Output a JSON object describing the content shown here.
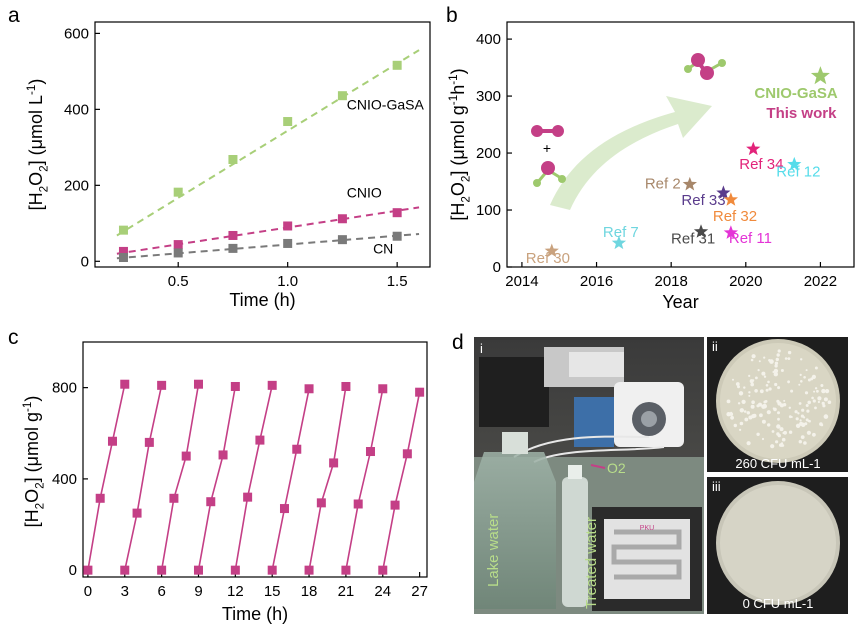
{
  "panel_labels": {
    "a": "a",
    "b": "b",
    "c": "c",
    "d": "d"
  },
  "chart_data": [
    {
      "id": "a",
      "type": "scatter",
      "xlabel": "Time (h)",
      "ylabel": "[H2O2] (μmol L-1)",
      "xlim": [
        0.12,
        1.65
      ],
      "ylim": [
        -15,
        630
      ],
      "xticks": [
        0.5,
        1.0,
        1.5
      ],
      "xtick_labels": [
        "0.5",
        "1.0",
        "1.5"
      ],
      "yticks": [
        0,
        200,
        400,
        600
      ],
      "ytick_labels": [
        "0",
        "200",
        "400",
        "600"
      ],
      "series": [
        {
          "name": "CNIO-GaSA",
          "color": "#a8cf78",
          "marker": "square",
          "x": [
            0.25,
            0.5,
            0.75,
            1.0,
            1.25,
            1.5
          ],
          "y": [
            82,
            182,
            268,
            368,
            436,
            516
          ],
          "fit": [
            [
              0.22,
              68
            ],
            [
              1.6,
              556
            ]
          ]
        },
        {
          "name": "CNIO",
          "color": "#c43f86",
          "marker": "square",
          "x": [
            0.25,
            0.5,
            0.75,
            1.0,
            1.25,
            1.5
          ],
          "y": [
            26,
            44,
            68,
            93,
            112,
            128
          ],
          "fit": [
            [
              0.22,
              20
            ],
            [
              1.6,
              142
            ]
          ]
        },
        {
          "name": "CN",
          "color": "#7a7a7a",
          "marker": "square",
          "x": [
            0.25,
            0.5,
            0.75,
            1.0,
            1.25,
            1.5
          ],
          "y": [
            10,
            22,
            34,
            47,
            57,
            66
          ],
          "fit": [
            [
              0.22,
              8
            ],
            [
              1.6,
              72
            ]
          ]
        }
      ]
    },
    {
      "id": "b",
      "type": "scatter",
      "xlabel": "Year",
      "ylabel": "[H2O2] (μmol g-1h-1)",
      "xlim": [
        2013.6,
        2022.9
      ],
      "ylim": [
        0,
        430
      ],
      "xticks": [
        2014,
        2016,
        2018,
        2020,
        2022
      ],
      "xtick_labels": [
        "2014",
        "2016",
        "2018",
        "2020",
        "2022"
      ],
      "yticks": [
        0,
        100,
        200,
        300,
        400
      ],
      "ytick_labels": [
        "0",
        "100",
        "200",
        "300",
        "400"
      ],
      "points": [
        {
          "label": "Ref 30",
          "x": 2014.8,
          "y": 28,
          "color": "#c9a27e"
        },
        {
          "label": "Ref 7",
          "x": 2016.6,
          "y": 42,
          "color": "#6fd6df"
        },
        {
          "label": "Ref 31",
          "x": 2018.8,
          "y": 62,
          "color": "#4a4a4a"
        },
        {
          "label": "Ref 2",
          "x": 2018.5,
          "y": 145,
          "color": "#a7876a"
        },
        {
          "label": "Ref 33",
          "x": 2019.4,
          "y": 130,
          "color": "#5a3c8c"
        },
        {
          "label": "Ref 32",
          "x": 2019.6,
          "y": 118,
          "color": "#f08a3c"
        },
        {
          "label": "Ref 11",
          "x": 2019.6,
          "y": 60,
          "color": "#e434d6"
        },
        {
          "label": "Ref 34",
          "x": 2020.2,
          "y": 207,
          "color": "#e2237a"
        },
        {
          "label": "Ref 12",
          "x": 2021.3,
          "y": 180,
          "color": "#55dcea"
        },
        {
          "label": "CNIO-GaSA",
          "x": 2022.0,
          "y": 335,
          "color": "#9ec96d"
        }
      ],
      "annotation": {
        "text": "This work",
        "color": "#c43f86"
      },
      "molecule_labels": {
        "plus": "+"
      }
    },
    {
      "id": "c",
      "type": "line",
      "xlabel": "Time (h)",
      "ylabel": "[H2O2] (μmol g-1)",
      "xlim": [
        -0.4,
        27.6
      ],
      "ylim": [
        -30,
        1000
      ],
      "xticks": [
        0,
        3,
        6,
        9,
        12,
        15,
        18,
        21,
        24,
        27
      ],
      "xtick_labels": [
        "0",
        "3",
        "6",
        "9",
        "12",
        "15",
        "18",
        "21",
        "24",
        "27"
      ],
      "yticks": [
        0,
        400,
        800
      ],
      "ytick_labels": [
        "0",
        "400",
        "800"
      ],
      "color": "#c43f86",
      "cycles": [
        {
          "x": [
            0,
            1,
            2,
            3
          ],
          "y": [
            0,
            315,
            565,
            815
          ]
        },
        {
          "x": [
            3,
            4,
            5,
            6
          ],
          "y": [
            0,
            250,
            560,
            810
          ]
        },
        {
          "x": [
            6,
            7,
            8,
            9
          ],
          "y": [
            0,
            315,
            500,
            815
          ]
        },
        {
          "x": [
            9,
            10,
            11,
            12
          ],
          "y": [
            0,
            300,
            505,
            805
          ]
        },
        {
          "x": [
            12,
            13,
            14,
            15
          ],
          "y": [
            0,
            320,
            570,
            810
          ]
        },
        {
          "x": [
            15,
            16,
            17,
            18
          ],
          "y": [
            0,
            270,
            530,
            795
          ]
        },
        {
          "x": [
            18,
            19,
            20,
            21
          ],
          "y": [
            0,
            295,
            470,
            805
          ]
        },
        {
          "x": [
            21,
            22,
            23,
            24
          ],
          "y": [
            0,
            290,
            520,
            795
          ]
        },
        {
          "x": [
            24,
            25,
            26,
            27
          ],
          "y": [
            0,
            285,
            510,
            780
          ]
        }
      ]
    }
  ],
  "photos": {
    "main": {
      "marker": "i",
      "lake": "Lake water",
      "treated": "Treated water",
      "o2": "O2",
      "device": "PKU"
    },
    "plate_ii": {
      "marker": "ii",
      "caption": "260 CFU mL-1"
    },
    "plate_iii": {
      "marker": "iii",
      "caption": "0 CFU mL-1"
    }
  }
}
